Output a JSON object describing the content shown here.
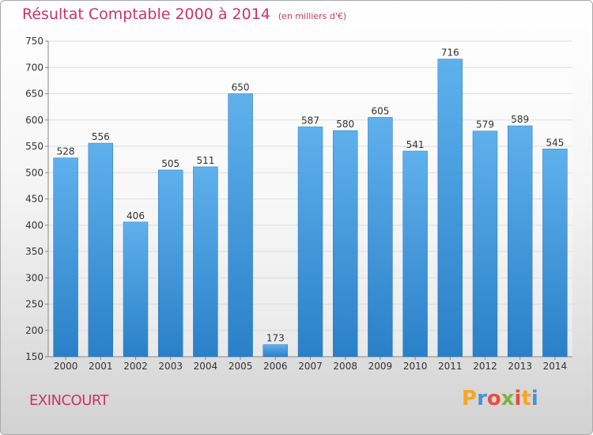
{
  "chart_data": {
    "type": "bar",
    "title": "Résultat Comptable 2000 à 2014",
    "unit_note": "(en milliers d'€)",
    "categories": [
      "2000",
      "2001",
      "2002",
      "2003",
      "2004",
      "2005",
      "2006",
      "2007",
      "2008",
      "2009",
      "2010",
      "2011",
      "2012",
      "2013",
      "2014"
    ],
    "values": [
      528,
      556,
      406,
      505,
      511,
      650,
      173,
      587,
      580,
      605,
      541,
      716,
      579,
      589,
      545
    ],
    "ylim": [
      150,
      750
    ],
    "yticks": [
      150,
      200,
      250,
      300,
      350,
      400,
      450,
      500,
      550,
      600,
      650,
      700,
      750
    ],
    "grid": true,
    "bar_color": "#3f97dd"
  },
  "footer": {
    "commune": "EXINCOURT",
    "logo_letters": [
      "P",
      "r",
      "o",
      "x",
      "i",
      "t",
      "i"
    ],
    "logo_colors": [
      "#f5a623",
      "#4a90d9",
      "#e94e3c",
      "#7cb342",
      "#e94e3c",
      "#f5a623",
      "#4a90d9"
    ]
  },
  "colors": {
    "accent": "#cc3366",
    "grid": "#dddddd"
  }
}
